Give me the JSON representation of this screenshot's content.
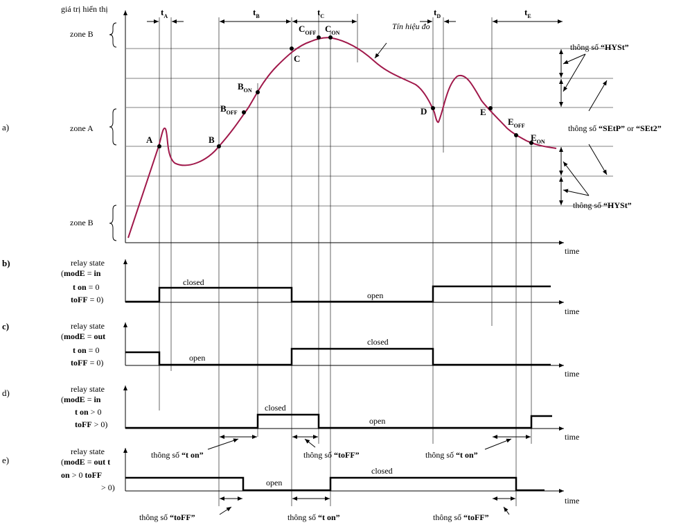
{
  "panels": [
    {
      "letter": "a)",
      "bold": false
    },
    {
      "letter": "b)",
      "bold": true
    },
    {
      "letter": "c)",
      "bold": true
    },
    {
      "letter": "d)",
      "bold": false
    },
    {
      "letter": "e)",
      "bold": false
    }
  ],
  "signal_chart": {
    "y_title": "giá trị hiển thị",
    "zones": {
      "upper": "zone B",
      "middle": "zone A",
      "lower": "zone B"
    },
    "signal_label": "Tín hiệu đo",
    "x_label": "time",
    "points": {
      "A": "A",
      "B": "B",
      "B_off": {
        "base": "B",
        "sub": "OFF"
      },
      "B_on": {
        "base": "B",
        "sub": "ON"
      },
      "C": "C",
      "C_off": {
        "base": "C",
        "sub": "OFF"
      },
      "C_on": {
        "base": "C",
        "sub": "ON"
      },
      "D": "D",
      "E": "E",
      "E_off": {
        "base": "E",
        "sub": "OFF"
      },
      "E_on": {
        "base": "E",
        "sub": "ON"
      }
    },
    "intervals": [
      {
        "base": "t",
        "sub": "A"
      },
      {
        "base": "t",
        "sub": "B"
      },
      {
        "base": "t",
        "sub": "C"
      },
      {
        "base": "t",
        "sub": "D"
      },
      {
        "base": "t",
        "sub": "E"
      }
    ],
    "param_hyst_top": {
      "prefix": "thông số ",
      "name": "“HYSt”"
    },
    "param_setp": {
      "prefix": "thông số ",
      "name1": "“SEtP”",
      "mid": " or ",
      "name2": "“SEt2”"
    },
    "param_hyst_bottom": {
      "prefix": "thông số ",
      "name": "“HYSt”"
    }
  },
  "relay_panels": {
    "b": {
      "title": "relay state",
      "line1": {
        "prefix": "(",
        "bold": "modE",
        "rest": " = ",
        "value": "in"
      },
      "line2": {
        "bold": "t on",
        "rest": "  =  0"
      },
      "line3": {
        "bold": "toFF",
        "rest": " = 0)"
      },
      "closed": "closed",
      "open": "open",
      "time": "time"
    },
    "c": {
      "title": "relay state",
      "line1": {
        "prefix": "(",
        "bold": "modE",
        "rest": " = ",
        "value": "out"
      },
      "line2": {
        "bold": "t on",
        "rest": "  =  0"
      },
      "line3": {
        "bold": "toFF",
        "rest": " = 0)"
      },
      "open": "open",
      "closed": "closed",
      "time": "time"
    },
    "d": {
      "title": "relay state",
      "line1": {
        "prefix": "(",
        "bold": "modE",
        "rest": " = ",
        "value": "in"
      },
      "line2": {
        "bold": "t on",
        "rest": "  >  0"
      },
      "line3": {
        "bold": "toFF",
        "rest": " > 0)"
      },
      "closed": "closed",
      "open": "open",
      "time": "time",
      "delay_label_1": {
        "prefix": "thông số ",
        "name": "“t on”"
      },
      "delay_label_2": {
        "prefix": "thông số ",
        "name": "“toFF”"
      },
      "delay_label_3": {
        "prefix": "thông số ",
        "name": "“t on”"
      }
    },
    "e": {
      "title": "relay state",
      "line1": {
        "prefix": "(",
        "bold": "modE",
        "rest": " = ",
        "value": "out t"
      },
      "line2": {
        "bold": "on",
        "rest": " > 0 ",
        "bold2": "toFF"
      },
      "line3": {
        "rest": "> 0)"
      },
      "open": "open",
      "closed": "closed",
      "time": "time",
      "delay_label_1": {
        "prefix": "thông số ",
        "name": "“toFF”"
      },
      "delay_label_2": {
        "prefix": "thông số ",
        "name": "“t on”"
      },
      "delay_label_3": {
        "prefix": "thông số ",
        "name": "“toFF”"
      }
    }
  },
  "colors": {
    "signal": "#a0184a",
    "line": "#000000",
    "guide": "#000000"
  }
}
